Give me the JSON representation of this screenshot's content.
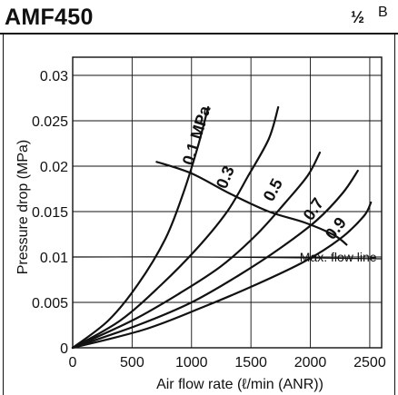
{
  "header": {
    "model": "AMF450",
    "port_size": "½",
    "port_suffix": "B"
  },
  "chart_data": {
    "type": "line",
    "title": "",
    "xlabel": "Air flow rate (ℓ/min (ANR))",
    "ylabel": "Pressure drop (MPa)",
    "xlim": [
      0,
      2600
    ],
    "ylim": [
      0,
      0.032
    ],
    "xticks": [
      0,
      500,
      1000,
      1500,
      2000,
      2500
    ],
    "xtick_labels": [
      "0",
      "500",
      "1000",
      "1500",
      "2000",
      "2500"
    ],
    "yticks": [
      0,
      0.005,
      0.01,
      0.015,
      0.02,
      0.025,
      0.03
    ],
    "ytick_labels": [
      "0",
      "0.005",
      "0.01",
      "0.015",
      "0.02",
      "0.025",
      "0.03"
    ],
    "grid": true,
    "series": [
      {
        "name": "0.1 MPa",
        "points": [
          [
            0,
            0
          ],
          [
            300,
            0.003
          ],
          [
            550,
            0.007
          ],
          [
            780,
            0.012
          ],
          [
            930,
            0.017
          ],
          [
            1050,
            0.022
          ],
          [
            1140,
            0.0265
          ]
        ]
      },
      {
        "name": "0.3",
        "points": [
          [
            0,
            0
          ],
          [
            400,
            0.003
          ],
          [
            750,
            0.007
          ],
          [
            1050,
            0.011
          ],
          [
            1300,
            0.015
          ],
          [
            1480,
            0.019
          ],
          [
            1650,
            0.023
          ],
          [
            1730,
            0.0265
          ]
        ]
      },
      {
        "name": "0.5",
        "points": [
          [
            0,
            0
          ],
          [
            500,
            0.003
          ],
          [
            900,
            0.006
          ],
          [
            1250,
            0.009
          ],
          [
            1550,
            0.0125
          ],
          [
            1790,
            0.016
          ],
          [
            1980,
            0.019
          ],
          [
            2080,
            0.0215
          ]
        ]
      },
      {
        "name": "0.7",
        "points": [
          [
            0,
            0
          ],
          [
            550,
            0.0025
          ],
          [
            1000,
            0.005
          ],
          [
            1400,
            0.008
          ],
          [
            1750,
            0.011
          ],
          [
            2050,
            0.014
          ],
          [
            2270,
            0.017
          ],
          [
            2400,
            0.0195
          ]
        ]
      },
      {
        "name": "0.9",
        "points": [
          [
            0,
            0
          ],
          [
            600,
            0.002
          ],
          [
            1100,
            0.0045
          ],
          [
            1550,
            0.007
          ],
          [
            1950,
            0.0095
          ],
          [
            2250,
            0.012
          ],
          [
            2450,
            0.0145
          ],
          [
            2510,
            0.016
          ]
        ]
      }
    ],
    "max_flow_line": {
      "label": "Max. flow line",
      "points": [
        [
          700,
          0.0205
        ],
        [
          1000,
          0.0192
        ],
        [
          1320,
          0.017
        ],
        [
          1650,
          0.015
        ],
        [
          1950,
          0.0138
        ],
        [
          2200,
          0.0124
        ],
        [
          2310,
          0.0113
        ]
      ]
    },
    "reference_line": {
      "points": [
        [
          0,
          0.01
        ],
        [
          1000,
          0.01
        ],
        [
          2000,
          0.0099
        ],
        [
          2600,
          0.0098
        ]
      ]
    }
  },
  "colors": {
    "ink": "#111111",
    "grid": "#111111",
    "background": "#ffffff"
  }
}
